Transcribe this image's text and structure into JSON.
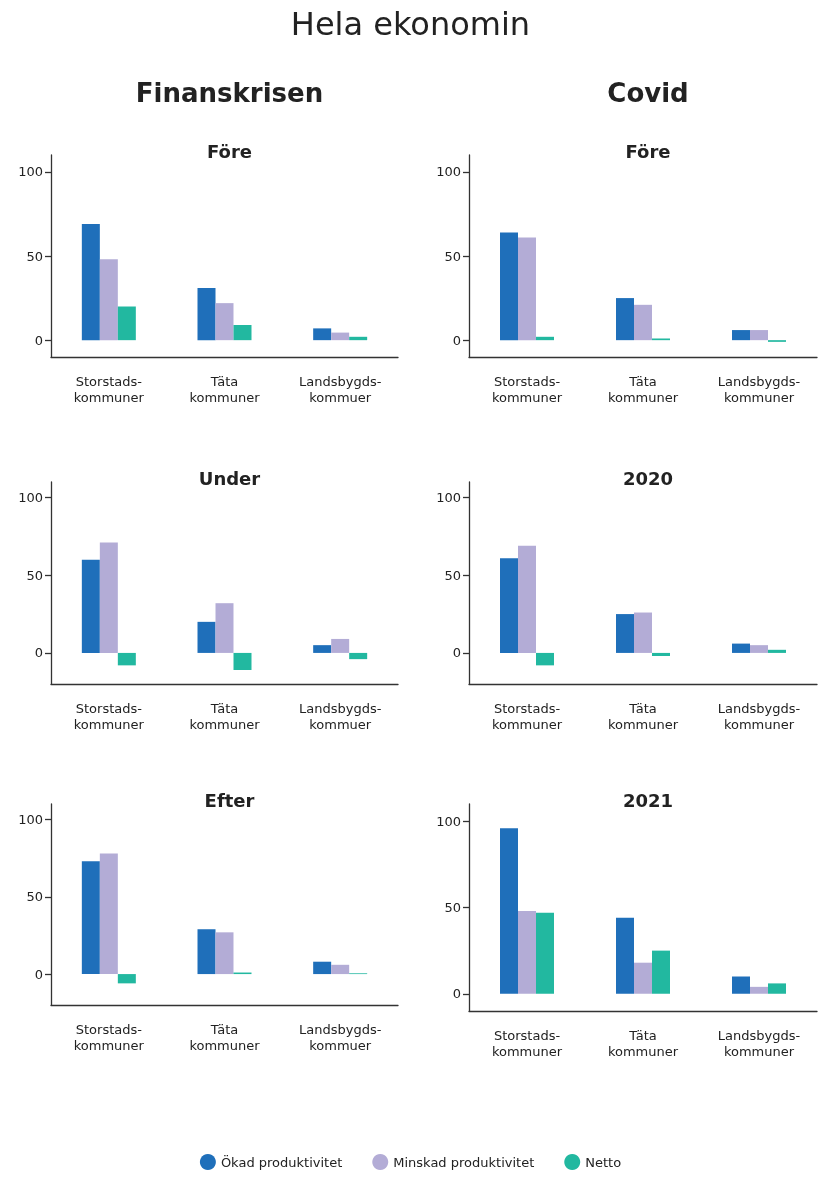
{
  "chart_data": [
    {
      "type": "bar",
      "title": "Före",
      "subtitle": "Finanskrisen",
      "annotations": [
        "Hela ekonomin"
      ],
      "categories": [
        "Storstads-\nkommuner",
        "Täta\nkommuner",
        "Landsbygds-\nkommuer"
      ],
      "ylim": [
        -10,
        110
      ],
      "yticks": [
        0,
        50,
        100
      ],
      "grid": false,
      "series": [
        {
          "color": "#1f6fba",
          "values": [
            69,
            31,
            7
          ]
        },
        {
          "color": "#b3acd6",
          "values": [
            48,
            22,
            4.5
          ]
        },
        {
          "color": "#22b8a0",
          "values": [
            20,
            9,
            2
          ]
        }
      ]
    },
    {
      "type": "bar",
      "title": "Före",
      "subtitle": "Covid",
      "categories": [
        "Storstads-\nkommuner",
        "Täta\nkommuner",
        "Landsbygds-\nkommuner"
      ],
      "ylim": [
        -10,
        110
      ],
      "yticks": [
        0,
        50,
        100
      ],
      "grid": false,
      "series": [
        {
          "color": "#1f6fba",
          "values": [
            64,
            25,
            6
          ]
        },
        {
          "color": "#b3acd6",
          "values": [
            61,
            21,
            6
          ]
        },
        {
          "color": "#22b8a0",
          "values": [
            2,
            1,
            -1
          ]
        }
      ]
    },
    {
      "type": "bar",
      "title": "Under",
      "categories": [
        "Storstads-\nkommuner",
        "Täta\nkommuner",
        "Landsbygds-\nkommuer"
      ],
      "ylim": [
        -20,
        110
      ],
      "yticks": [
        0,
        50,
        100
      ],
      "grid": false,
      "series": [
        {
          "color": "#1f6fba",
          "values": [
            60,
            20,
            5
          ]
        },
        {
          "color": "#b3acd6",
          "values": [
            71,
            32,
            9
          ]
        },
        {
          "color": "#22b8a0",
          "values": [
            -8,
            -11,
            -4
          ]
        }
      ]
    },
    {
      "type": "bar",
      "title": "2020",
      "categories": [
        "Storstads-\nkommuner",
        "Täta\nkommuner",
        "Landsbygds-\nkommuner"
      ],
      "ylim": [
        -20,
        110
      ],
      "yticks": [
        0,
        50,
        100
      ],
      "grid": false,
      "series": [
        {
          "color": "#1f6fba",
          "values": [
            61,
            25,
            6
          ]
        },
        {
          "color": "#b3acd6",
          "values": [
            69,
            26,
            5
          ]
        },
        {
          "color": "#22b8a0",
          "values": [
            -8,
            -2,
            2
          ]
        }
      ]
    },
    {
      "type": "bar",
      "title": "Efter",
      "categories": [
        "Storstads-\nkommuner",
        "Täta\nkommuner",
        "Landsbygds-\nkommuer"
      ],
      "ylim": [
        -20,
        110
      ],
      "yticks": [
        0,
        50,
        100
      ],
      "grid": false,
      "series": [
        {
          "color": "#1f6fba",
          "values": [
            73,
            29,
            8
          ]
        },
        {
          "color": "#b3acd6",
          "values": [
            78,
            27,
            6
          ]
        },
        {
          "color": "#22b8a0",
          "values": [
            -6,
            1,
            0.5
          ]
        }
      ]
    },
    {
      "type": "bar",
      "title": "2021",
      "categories": [
        "Storstads-\nkommuner",
        "Täta\nkommuner",
        "Landsbygds-\nkommuner"
      ],
      "ylim": [
        -10,
        110
      ],
      "yticks": [
        0,
        50,
        100
      ],
      "grid": false,
      "legend": "bottom",
      "series": [
        {
          "name": "Ökad produktivitet",
          "color": "#1f6fba",
          "values": [
            96,
            44,
            10
          ]
        },
        {
          "name": "Minskad produktivitet",
          "color": "#b3acd6",
          "values": [
            48,
            18,
            4
          ]
        },
        {
          "name": "Netto",
          "color": "#22b8a0",
          "values": [
            47,
            25,
            6
          ]
        }
      ]
    }
  ]
}
